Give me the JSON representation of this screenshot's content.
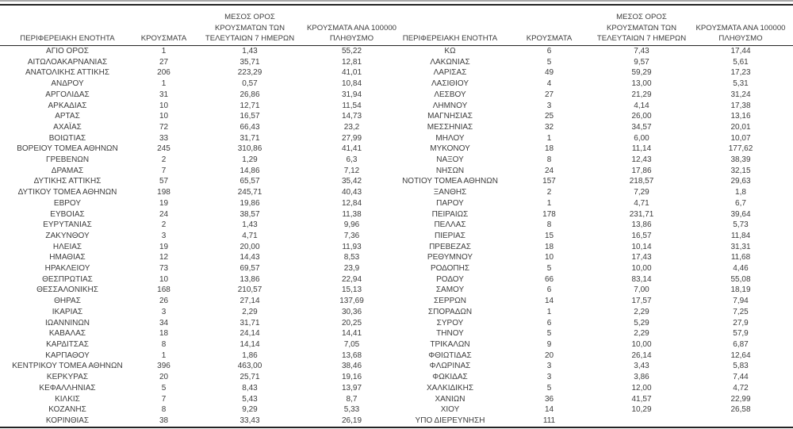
{
  "headers": {
    "region": "ΠΕΡΙΦΕΡΕΙΑΚΗ ΕΝΟΤΗΤΑ",
    "cases": "ΚΡΟΥΣΜΑΤΑ",
    "avg7": "ΜΕΣΟΣ ΟΡΟΣ\nΚΡΟΥΣΜΑΤΩΝ ΤΩΝ\nΤΕΛΕΥΤΑΙΩΝ 7 ΗΜΕΡΩΝ",
    "per100k": "ΚΡΟΥΣΜΑΤΑ ΑΝΑ 100000\nΠΛΗΘΥΣΜΟ"
  },
  "left_rows": [
    [
      "ΑΓΙΟ ΟΡΟΣ",
      "1",
      "1,43",
      "55,22"
    ],
    [
      "ΑΙΤΩΛΟΑΚΑΡΝΑΝΙΑΣ",
      "27",
      "35,71",
      "12,81"
    ],
    [
      "ΑΝΑΤΟΛΙΚΗΣ ΑΤΤΙΚΗΣ",
      "206",
      "223,29",
      "41,01"
    ],
    [
      "ΑΝΔΡΟΥ",
      "1",
      "0,57",
      "10,84"
    ],
    [
      "ΑΡΓΟΛΙΔΑΣ",
      "31",
      "26,86",
      "31,94"
    ],
    [
      "ΑΡΚΑΔΙΑΣ",
      "10",
      "12,71",
      "11,54"
    ],
    [
      "ΑΡΤΑΣ",
      "10",
      "16,57",
      "14,73"
    ],
    [
      "ΑΧΑΪΑΣ",
      "72",
      "66,43",
      "23,2"
    ],
    [
      "ΒΟΙΩΤΙΑΣ",
      "33",
      "31,71",
      "27,99"
    ],
    [
      "ΒΟΡΕΙΟΥ ΤΟΜΕΑ ΑΘΗΝΩΝ",
      "245",
      "310,86",
      "41,41"
    ],
    [
      "ΓΡΕΒΕΝΩΝ",
      "2",
      "1,29",
      "6,3"
    ],
    [
      "ΔΡΑΜΑΣ",
      "7",
      "14,86",
      "7,12"
    ],
    [
      "ΔΥΤΙΚΗΣ ΑΤΤΙΚΗΣ",
      "57",
      "65,57",
      "35,42"
    ],
    [
      "ΔΥΤΙΚΟΥ ΤΟΜΕΑ ΑΘΗΝΩΝ",
      "198",
      "245,71",
      "40,43"
    ],
    [
      "ΕΒΡΟΥ",
      "19",
      "19,86",
      "12,84"
    ],
    [
      "ΕΥΒΟΙΑΣ",
      "24",
      "38,57",
      "11,38"
    ],
    [
      "ΕΥΡΥΤΑΝΙΑΣ",
      "2",
      "1,43",
      "9,96"
    ],
    [
      "ΖΑΚΥΝΘΟΥ",
      "3",
      "4,71",
      "7,36"
    ],
    [
      "ΗΛΕΙΑΣ",
      "19",
      "20,00",
      "11,93"
    ],
    [
      "ΗΜΑΘΙΑΣ",
      "12",
      "14,43",
      "8,53"
    ],
    [
      "ΗΡΑΚΛΕΙΟΥ",
      "73",
      "69,57",
      "23,9"
    ],
    [
      "ΘΕΣΠΡΩΤΙΑΣ",
      "10",
      "13,86",
      "22,94"
    ],
    [
      "ΘΕΣΣΑΛΟΝΙΚΗΣ",
      "168",
      "210,57",
      "15,13"
    ],
    [
      "ΘΗΡΑΣ",
      "26",
      "27,14",
      "137,69"
    ],
    [
      "ΙΚΑΡΙΑΣ",
      "3",
      "2,29",
      "30,36"
    ],
    [
      "ΙΩΑΝΝΙΝΩΝ",
      "34",
      "31,71",
      "20,25"
    ],
    [
      "ΚΑΒΑΛΑΣ",
      "18",
      "24,14",
      "14,41"
    ],
    [
      "ΚΑΡΔΙΤΣΑΣ",
      "8",
      "14,14",
      "7,05"
    ],
    [
      "ΚΑΡΠΑΘΟΥ",
      "1",
      "1,86",
      "13,68"
    ],
    [
      "ΚΕΝΤΡΙΚΟΥ ΤΟΜΕΑ ΑΘΗΝΩΝ",
      "396",
      "463,00",
      "38,46"
    ],
    [
      "ΚΕΡΚΥΡΑΣ",
      "20",
      "25,71",
      "19,16"
    ],
    [
      "ΚΕΦΑΛΛΗΝΙΑΣ",
      "5",
      "8,43",
      "13,97"
    ],
    [
      "ΚΙΛΚΙΣ",
      "7",
      "5,43",
      "8,7"
    ],
    [
      "ΚΟΖΑΝΗΣ",
      "8",
      "9,29",
      "5,33"
    ],
    [
      "ΚΟΡΙΝΘΙΑΣ",
      "38",
      "33,43",
      "26,19"
    ]
  ],
  "right_rows": [
    [
      "ΚΩ",
      "6",
      "7,43",
      "17,44"
    ],
    [
      "ΛΑΚΩΝΙΑΣ",
      "5",
      "9,57",
      "5,61"
    ],
    [
      "ΛΑΡΙΣΑΣ",
      "49",
      "59,29",
      "17,23"
    ],
    [
      "ΛΑΣΙΘΙΟΥ",
      "4",
      "13,00",
      "5,31"
    ],
    [
      "ΛΕΣΒΟΥ",
      "27",
      "21,29",
      "31,24"
    ],
    [
      "ΛΗΜΝΟΥ",
      "3",
      "4,14",
      "17,38"
    ],
    [
      "ΜΑΓΝΗΣΙΑΣ",
      "25",
      "26,00",
      "13,16"
    ],
    [
      "ΜΕΣΣΗΝΙΑΣ",
      "32",
      "34,57",
      "20,01"
    ],
    [
      "ΜΗΛΟΥ",
      "1",
      "6,00",
      "10,07"
    ],
    [
      "ΜΥΚΟΝΟΥ",
      "18",
      "11,14",
      "177,62"
    ],
    [
      "ΝΑΞΟΥ",
      "8",
      "12,43",
      "38,39"
    ],
    [
      "ΝΗΣΩΝ",
      "24",
      "17,86",
      "32,15"
    ],
    [
      "ΝΟΤΙΟΥ ΤΟΜΕΑ ΑΘΗΝΩΝ",
      "157",
      "218,57",
      "29,63"
    ],
    [
      "ΞΑΝΘΗΣ",
      "2",
      "7,29",
      "1,8"
    ],
    [
      "ΠΑΡΟΥ",
      "1",
      "4,71",
      "6,7"
    ],
    [
      "ΠΕΙΡΑΙΩΣ",
      "178",
      "231,71",
      "39,64"
    ],
    [
      "ΠΕΛΛΑΣ",
      "8",
      "13,86",
      "5,73"
    ],
    [
      "ΠΙΕΡΙΑΣ",
      "15",
      "16,57",
      "11,84"
    ],
    [
      "ΠΡΕΒΕΖΑΣ",
      "18",
      "10,14",
      "31,31"
    ],
    [
      "ΡΕΘΥΜΝΟΥ",
      "10",
      "17,43",
      "11,68"
    ],
    [
      "ΡΟΔΟΠΗΣ",
      "5",
      "10,00",
      "4,46"
    ],
    [
      "ΡΟΔΟΥ",
      "66",
      "83,14",
      "55,08"
    ],
    [
      "ΣΑΜΟΥ",
      "6",
      "7,00",
      "18,19"
    ],
    [
      "ΣΕΡΡΩΝ",
      "14",
      "17,57",
      "7,94"
    ],
    [
      "ΣΠΟΡΑΔΩΝ",
      "1",
      "2,29",
      "7,25"
    ],
    [
      "ΣΥΡΟΥ",
      "6",
      "5,29",
      "27,9"
    ],
    [
      "ΤΗΝΟΥ",
      "5",
      "2,29",
      "57,9"
    ],
    [
      "ΤΡΙΚΑΛΩΝ",
      "9",
      "10,00",
      "6,87"
    ],
    [
      "ΦΘΙΩΤΙΔΑΣ",
      "20",
      "26,14",
      "12,64"
    ],
    [
      "ΦΛΩΡΙΝΑΣ",
      "3",
      "3,43",
      "5,83"
    ],
    [
      "ΦΩΚΙΔΑΣ",
      "3",
      "3,86",
      "7,44"
    ],
    [
      "ΧΑΛΚΙΔΙΚΗΣ",
      "5",
      "12,00",
      "4,72"
    ],
    [
      "ΧΑΝΙΩΝ",
      "36",
      "41,57",
      "22,99"
    ],
    [
      "ΧΙΟΥ",
      "14",
      "10,29",
      "26,58"
    ],
    [
      "ΥΠΟ ΔΙΕΡΕΥΝΗΣΗ",
      "111",
      "",
      ""
    ]
  ],
  "colors": {
    "text": "#3c3c3c",
    "rule": "#242424",
    "top_rule": "#a8a8a8",
    "background": "#ffffff"
  }
}
